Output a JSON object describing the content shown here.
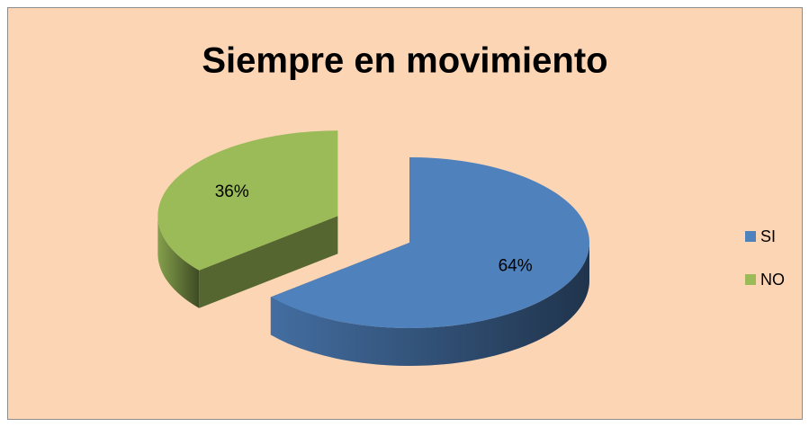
{
  "chart_data": {
    "type": "pie",
    "title": "Siempre en movimiento",
    "categories": [
      "SI",
      "NO"
    ],
    "values": [
      64,
      36
    ],
    "value_labels": [
      "64%",
      "36%"
    ],
    "colors": [
      "#4f81bd",
      "#9bbb59"
    ],
    "legend": "right"
  }
}
